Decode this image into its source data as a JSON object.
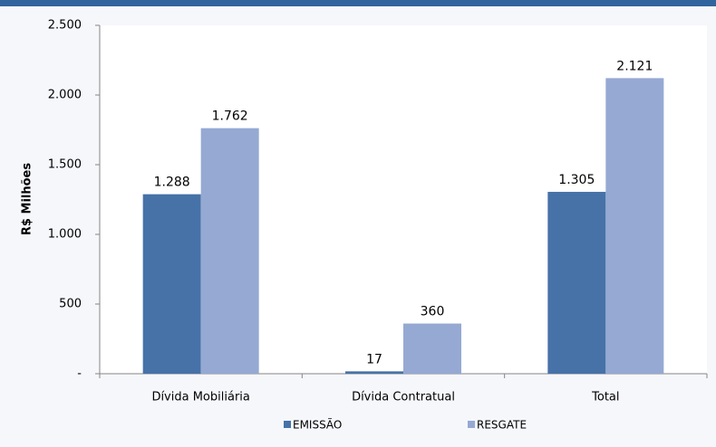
{
  "chart_data": {
    "type": "bar",
    "y_label": "R$ Milhões",
    "categories": [
      "Dívida Mobiliária",
      "Dívida Contratual",
      "Total"
    ],
    "series": [
      {
        "name": "EMISSÃO",
        "color": "#4672a8",
        "values": [
          1288,
          17,
          1305
        ],
        "value_labels": [
          "1.288",
          "17",
          "1.305"
        ]
      },
      {
        "name": "RESGATE",
        "color": "#95a9d3",
        "values": [
          1762,
          360,
          2121
        ],
        "value_labels": [
          "1.762",
          "360",
          "2.121"
        ]
      }
    ],
    "ylim": [
      0,
      2500
    ],
    "yticks": [
      {
        "value": 0,
        "label": "-"
      },
      500,
      {
        "value": 1000,
        "label": "1.000"
      },
      {
        "value": 1500,
        "label": "1.500"
      },
      {
        "value": 2000,
        "label": "2.000"
      },
      {
        "value": 2500,
        "label": "2.500"
      }
    ],
    "grid": false,
    "legend": "bottom"
  }
}
